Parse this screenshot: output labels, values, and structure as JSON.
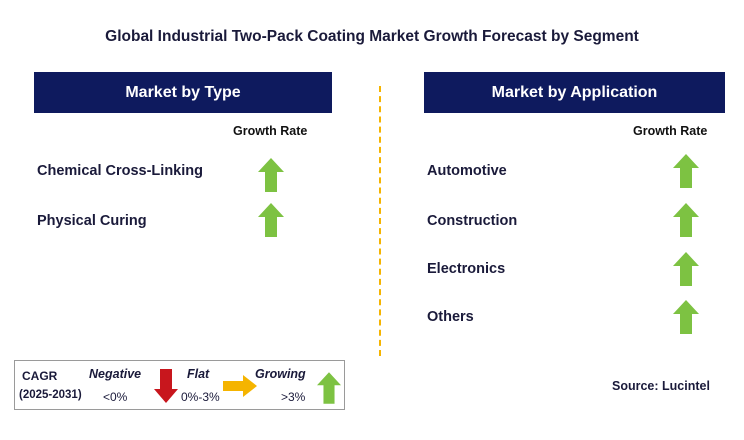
{
  "title": "Global Industrial Two-Pack Coating Market Growth Forecast by Segment",
  "left_panel": {
    "header": "Market by Type",
    "column_header": "Growth Rate",
    "rows": [
      {
        "label": "Chemical Cross-Linking",
        "trend": "growing"
      },
      {
        "label": "Physical Curing",
        "trend": "growing"
      }
    ]
  },
  "right_panel": {
    "header": "Market by Application",
    "column_header": "Growth Rate",
    "rows": [
      {
        "label": "Automotive",
        "trend": "growing"
      },
      {
        "label": "Construction",
        "trend": "growing"
      },
      {
        "label": "Electronics",
        "trend": "growing"
      },
      {
        "label": "Others",
        "trend": "growing"
      }
    ]
  },
  "legend": {
    "cagr_label": "CAGR",
    "period": "(2025-2031)",
    "negative_label": "Negative",
    "negative_range": "<0%",
    "flat_label": "Flat",
    "flat_range": "0%-3%",
    "growing_label": "Growing",
    "growing_range": ">3%"
  },
  "source": "Source: Lucintel",
  "colors": {
    "header_bg": "#0e1a5e",
    "growing_arrow": "#7dc242",
    "negative_arrow": "#c8161d",
    "flat_arrow": "#f5b400",
    "divider": "#f5b400"
  }
}
